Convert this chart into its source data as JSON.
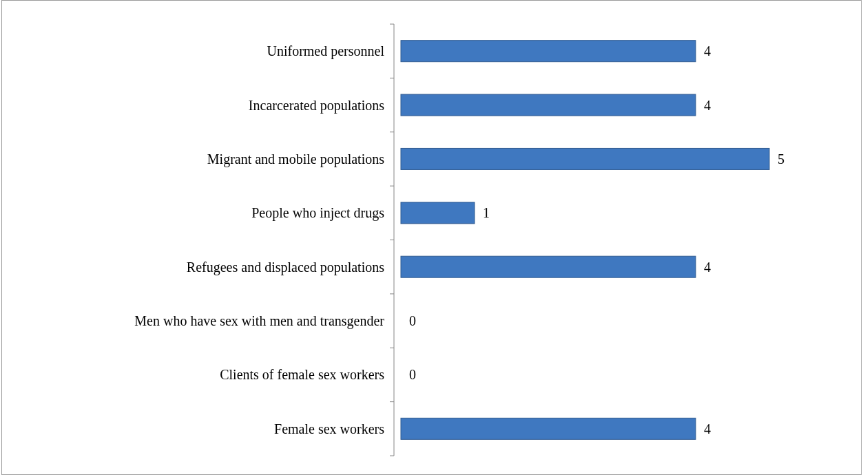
{
  "chart_data": {
    "type": "bar",
    "orientation": "horizontal",
    "categories": [
      "Uniformed personnel",
      "Incarcerated populations",
      "Migrant and mobile populations",
      "People who inject drugs",
      "Refugees and displaced populations",
      "Men who have sex with men and transgender",
      "Clients of female sex workers",
      "Female sex workers"
    ],
    "values": [
      4,
      4,
      5,
      1,
      4,
      0,
      0,
      4
    ],
    "color": "#3f78c0",
    "data_labels": true
  }
}
